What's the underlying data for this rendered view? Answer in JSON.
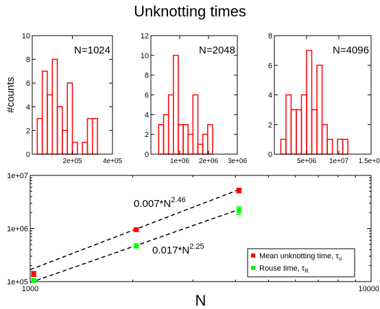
{
  "title": "Unknotting times",
  "chart_data": [
    {
      "type": "bar",
      "subtype": "histogram",
      "annotation": "N=1024",
      "ylabel": "#counts",
      "ylim": [
        0,
        10
      ],
      "xlim": [
        0,
        400000
      ],
      "xtick_values": [
        200000,
        400000
      ],
      "xtick_labels": [
        "2e+05",
        "4e+05"
      ],
      "ytick_values": [
        0,
        2,
        4,
        6,
        8,
        10
      ],
      "ytick_labels": [
        "0",
        "2",
        "4",
        "6",
        "8",
        "10"
      ],
      "bin_width": 25000,
      "bin_starts": [
        25000,
        50000,
        75000,
        100000,
        125000,
        150000,
        175000,
        200000,
        225000,
        250000,
        275000,
        300000,
        325000
      ],
      "values": [
        3,
        7,
        5,
        8,
        4,
        2,
        6,
        1,
        0,
        1,
        3,
        3,
        0
      ],
      "color": "#ff0000"
    },
    {
      "type": "bar",
      "subtype": "histogram",
      "annotation": "N=2048",
      "ylim": [
        0,
        12
      ],
      "xlim": [
        0,
        3000000
      ],
      "xtick_values": [
        1000000,
        2000000,
        3000000
      ],
      "xtick_labels": [
        "1e+06",
        "2e+06",
        "3e+06"
      ],
      "ytick_values": [
        0,
        2,
        4,
        6,
        8,
        10,
        12
      ],
      "ytick_labels": [
        "0",
        "2",
        "4",
        "6",
        "8",
        "10",
        "12"
      ],
      "bin_width": 170000,
      "bin_starts": [
        100000,
        270000,
        440000,
        610000,
        780000,
        950000,
        1120000,
        1290000,
        1460000,
        1630000,
        1800000,
        1970000
      ],
      "values": [
        0,
        3,
        4,
        6,
        10,
        3,
        3,
        2,
        6,
        1,
        2,
        3
      ],
      "color": "#ff0000"
    },
    {
      "type": "bar",
      "subtype": "histogram",
      "annotation": "N=4096",
      "ylim": [
        0,
        8
      ],
      "xlim": [
        0,
        15000000
      ],
      "xtick_values": [
        5000000,
        10000000,
        15000000
      ],
      "xtick_labels": [
        "5e+06",
        "1e+07",
        "1.5e+07"
      ],
      "ytick_values": [
        0,
        2,
        4,
        6,
        8
      ],
      "ytick_labels": [
        "0",
        "2",
        "4",
        "6",
        "8"
      ],
      "bin_width": 800000,
      "bin_starts": [
        1000000,
        1800000,
        2600000,
        3400000,
        4200000,
        5000000,
        5800000,
        6600000,
        7400000,
        8200000,
        9000000,
        9800000,
        10600000
      ],
      "values": [
        1,
        4,
        3,
        3,
        4,
        7,
        3,
        6,
        2,
        1,
        0,
        1,
        1
      ],
      "color": "#ff0000"
    },
    {
      "type": "scatter",
      "xscale": "log",
      "yscale": "log",
      "xlabel": "N",
      "xlim": [
        1000,
        10000
      ],
      "ylim": [
        100000,
        10000000
      ],
      "xtick_values": [
        1000,
        10000
      ],
      "xtick_labels": [
        "1000",
        "10000"
      ],
      "ytick_values": [
        100000,
        1000000,
        10000000
      ],
      "ytick_labels": [
        "1e+05",
        "1e+06",
        "1e+07"
      ],
      "legend_position": "lower-right",
      "series": [
        {
          "name": "Mean unknotting time, τ",
          "name_subscript": "u",
          "color": "#ff0000",
          "x": [
            1024,
            2048,
            4096
          ],
          "y": [
            140000,
            950000,
            5200000
          ],
          "y_err_low": [
            125000,
            880000,
            4700000
          ],
          "y_err_high": [
            155000,
            1020000,
            5700000
          ]
        },
        {
          "name": "Rouse time, τ",
          "name_subscript": "R",
          "color": "#00ff00",
          "x": [
            1024,
            2048,
            4096
          ],
          "y": [
            105000,
            470000,
            2200000
          ],
          "y_err_low": [
            98000,
            430000,
            1850000
          ],
          "y_err_high": [
            112000,
            510000,
            2550000
          ]
        }
      ],
      "fits": [
        {
          "coef": 0.007,
          "exponent": 2.46,
          "base_text": "0.007*N",
          "exp_text": "2.46"
        },
        {
          "coef": 0.017,
          "exponent": 2.25,
          "base_text": "0.017*N",
          "exp_text": "2.25"
        }
      ]
    }
  ]
}
